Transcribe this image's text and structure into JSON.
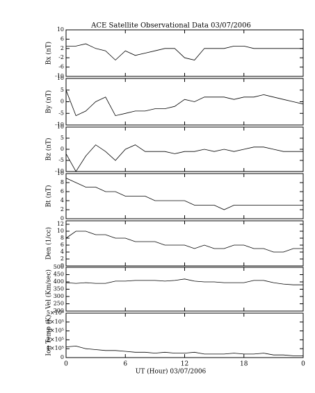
{
  "title": "ACE Satellite Observational Data   03/07/2006",
  "chart_data": [
    {
      "type": "line",
      "ylabel": "Bx (nT)",
      "xlim": [
        0,
        24
      ],
      "ylim": [
        -10,
        10
      ],
      "yticks": [
        -10,
        -6,
        -2,
        2,
        6,
        10
      ],
      "x": [
        0,
        1,
        2,
        3,
        4,
        5,
        6,
        7,
        8,
        9,
        10,
        11,
        12,
        13,
        14,
        15,
        16,
        17,
        18,
        19,
        20,
        21,
        22,
        23,
        24
      ],
      "series": [
        {
          "color": "#000000",
          "values": [
            3,
            3,
            4,
            2,
            1,
            -3,
            1,
            -1,
            0,
            1,
            2,
            2,
            -2,
            -3,
            2,
            2,
            2,
            3,
            3,
            2,
            2,
            2,
            2,
            2,
            2
          ]
        }
      ]
    },
    {
      "type": "line",
      "ylabel": "By (nT)",
      "xlim": [
        0,
        24
      ],
      "ylim": [
        -10,
        10
      ],
      "yticks": [
        -10,
        -5,
        0,
        5,
        10
      ],
      "x": [
        0,
        1,
        2,
        3,
        4,
        5,
        6,
        7,
        8,
        9,
        10,
        11,
        12,
        13,
        14,
        15,
        16,
        17,
        18,
        19,
        20,
        21,
        22,
        23,
        24
      ],
      "series": [
        {
          "color": "#000000",
          "values": [
            5,
            -6,
            -4,
            0,
            2,
            -6,
            -5,
            -4,
            -4,
            -3,
            -3,
            -2,
            1,
            0,
            2,
            2,
            2,
            1,
            2,
            2,
            3,
            2,
            1,
            0,
            -1
          ]
        }
      ]
    },
    {
      "type": "line",
      "ylabel": "Bz (nT)",
      "xlim": [
        0,
        24
      ],
      "ylim": [
        -10,
        10
      ],
      "yticks": [
        -10,
        -5,
        0,
        5,
        10
      ],
      "x": [
        0,
        1,
        2,
        3,
        4,
        5,
        6,
        7,
        8,
        9,
        10,
        11,
        12,
        13,
        14,
        15,
        16,
        17,
        18,
        19,
        20,
        21,
        22,
        23,
        24
      ],
      "series": [
        {
          "color": "#000000",
          "values": [
            -2,
            -10,
            -3,
            2,
            -1,
            -5,
            0,
            2,
            -1,
            -1,
            -1,
            -2,
            -1,
            -1,
            0,
            -1,
            0,
            -1,
            0,
            1,
            1,
            0,
            -1,
            -1,
            -1
          ]
        }
      ]
    },
    {
      "type": "line",
      "ylabel": "Bt (nT)",
      "xlim": [
        0,
        24
      ],
      "ylim": [
        0,
        10
      ],
      "yticks": [
        0,
        2,
        4,
        6,
        8,
        10
      ],
      "x": [
        0,
        1,
        2,
        3,
        4,
        5,
        6,
        7,
        8,
        9,
        10,
        11,
        12,
        13,
        14,
        15,
        16,
        17,
        18,
        19,
        20,
        21,
        22,
        23,
        24
      ],
      "series": [
        {
          "color": "#000000",
          "values": [
            9,
            8,
            7,
            7,
            6,
            6,
            5,
            5,
            5,
            4,
            4,
            4,
            4,
            3,
            3,
            3,
            2,
            3,
            3,
            3,
            3,
            3,
            3,
            3,
            3
          ]
        }
      ]
    },
    {
      "type": "line",
      "ylabel": "Den (1/cc)",
      "xlim": [
        0,
        24
      ],
      "ylim": [
        0,
        13
      ],
      "yticks": [
        0,
        2,
        4,
        6,
        8,
        10,
        12
      ],
      "x": [
        0,
        1,
        2,
        3,
        4,
        5,
        6,
        7,
        8,
        9,
        10,
        11,
        12,
        13,
        14,
        15,
        16,
        17,
        18,
        19,
        20,
        21,
        22,
        23,
        24
      ],
      "series": [
        {
          "color": "#000000",
          "values": [
            8,
            10,
            10,
            9,
            9,
            8,
            8,
            7,
            7,
            7,
            6,
            6,
            6,
            5,
            6,
            5,
            5,
            6,
            6,
            5,
            5,
            4,
            4,
            5,
            5
          ]
        }
      ]
    },
    {
      "type": "line",
      "ylabel": "Vel (Km/sec)",
      "xlim": [
        0,
        24
      ],
      "ylim": [
        200,
        500
      ],
      "yticks": [
        200,
        250,
        300,
        350,
        400,
        450,
        500
      ],
      "x": [
        0,
        1,
        2,
        3,
        4,
        5,
        6,
        7,
        8,
        9,
        10,
        11,
        12,
        13,
        14,
        15,
        16,
        17,
        18,
        19,
        20,
        21,
        22,
        23,
        24
      ],
      "series": [
        {
          "color": "#000000",
          "values": [
            395,
            390,
            395,
            390,
            390,
            405,
            405,
            410,
            410,
            410,
            405,
            410,
            420,
            405,
            400,
            400,
            395,
            395,
            395,
            410,
            410,
            395,
            385,
            380,
            380
          ]
        }
      ]
    },
    {
      "type": "line",
      "ylabel": "Ion Temp (K)",
      "xlabel": "UT (Hour)   03/07/2006",
      "xlim": [
        0,
        24
      ],
      "ylim": [
        0,
        500000
      ],
      "xticks": [
        0,
        6,
        12,
        18,
        {
          "value": 24,
          "label": "0"
        }
      ],
      "yticks": [
        0,
        {
          "value": 100000,
          "label": "1×10⁵"
        },
        {
          "value": 200000,
          "label": "2×10⁵"
        },
        {
          "value": 300000,
          "label": "3×10⁵"
        },
        {
          "value": 400000,
          "label": "4×10⁵"
        },
        {
          "value": 500000,
          "label": "5×10⁵"
        }
      ],
      "x": [
        0,
        1,
        2,
        3,
        4,
        5,
        6,
        7,
        8,
        9,
        10,
        11,
        12,
        13,
        14,
        15,
        16,
        17,
        18,
        19,
        20,
        21,
        22,
        23,
        24
      ],
      "series": [
        {
          "color": "#000000",
          "values": [
            120000,
            130000,
            100000,
            90000,
            80000,
            80000,
            70000,
            60000,
            60000,
            50000,
            60000,
            50000,
            50000,
            60000,
            40000,
            40000,
            40000,
            50000,
            40000,
            40000,
            50000,
            30000,
            30000,
            20000,
            20000
          ]
        }
      ]
    }
  ]
}
